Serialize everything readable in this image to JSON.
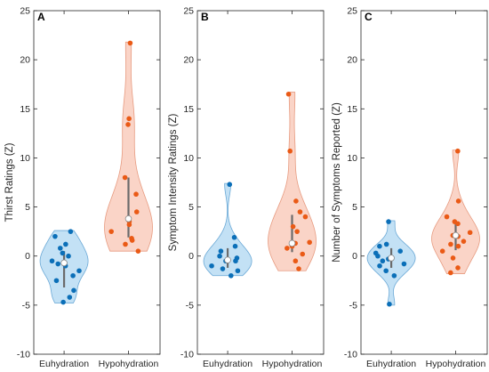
{
  "colors": {
    "euhydration_fill": "#b9dcf3",
    "euhydration_edge": "#6ba9d6",
    "euhydration_point": "#0b6fb8",
    "hypohydration_fill": "#f9cdbd",
    "hypohydration_edge": "#e79b80",
    "hypohydration_point": "#ea5a16",
    "box_line": "#6b6b6b",
    "median_fill": "#ffffff",
    "axis": "#262626"
  },
  "chart_data": [
    {
      "type": "violin",
      "panel_label": "A",
      "ylabel": "Thirst Ratings (Z)",
      "ylim": [
        -10,
        25
      ],
      "yticks": [
        -10,
        -5,
        0,
        5,
        10,
        15,
        20,
        25
      ],
      "categories": [
        "Euhydration",
        "Hypohydration"
      ],
      "series": [
        {
          "name": "Euhydration",
          "points": [
            2.5,
            2.0,
            1.2,
            0.8,
            0.3,
            0.0,
            -0.5,
            -0.8,
            -1.0,
            -1.5,
            -2.0,
            -2.5,
            -3.5,
            -4.2,
            -4.7
          ],
          "median": -0.7,
          "q1": -3.2,
          "q3": 0.5,
          "violin_range": [
            -4.8,
            2.6
          ],
          "peak": -0.5
        },
        {
          "name": "Hypohydration",
          "points": [
            21.7,
            14.0,
            13.4,
            8.0,
            6.3,
            4.5,
            3.8,
            3.5,
            3.2,
            2.5,
            1.8,
            1.6,
            1.2,
            0.5
          ],
          "median": 3.8,
          "q1": 1.9,
          "q3": 8.0,
          "violin_range": [
            0.5,
            21.8
          ],
          "peak": 2.5
        }
      ]
    },
    {
      "type": "violin",
      "panel_label": "B",
      "ylabel": "Symptom Intensity Ratings (Z)",
      "ylim": [
        -10,
        25
      ],
      "yticks": [
        -10,
        -5,
        0,
        5,
        10,
        15,
        20,
        25
      ],
      "categories": [
        "Euhydration",
        "Hypohydration"
      ],
      "series": [
        {
          "name": "Euhydration",
          "points": [
            7.3,
            1.9,
            1.0,
            0.5,
            0.0,
            -0.2,
            -0.5,
            -0.5,
            -1.0,
            -1.3,
            -1.5,
            -2.0
          ],
          "median": -0.4,
          "q1": -1.2,
          "q3": 0.8,
          "violin_range": [
            -2.0,
            7.4
          ],
          "peak": -0.5
        },
        {
          "name": "Hypohydration",
          "points": [
            16.5,
            10.7,
            5.6,
            4.5,
            4.0,
            3.0,
            2.5,
            1.4,
            1.3,
            1.0,
            0.8,
            0.2,
            -0.5,
            -1.3
          ],
          "median": 1.3,
          "q1": 0.4,
          "q3": 4.2,
          "violin_range": [
            -1.5,
            16.7
          ],
          "peak": 1.2
        }
      ]
    },
    {
      "type": "violin",
      "panel_label": "C",
      "ylabel": "Number of Symptoms Reported (Z)",
      "ylim": [
        -10,
        25
      ],
      "yticks": [
        -10,
        -5,
        0,
        5,
        10,
        15,
        20,
        25
      ],
      "categories": [
        "Euhydration",
        "Hypohydration"
      ],
      "series": [
        {
          "name": "Euhydration",
          "points": [
            3.5,
            1.2,
            1.0,
            0.5,
            0.3,
            0.0,
            -0.3,
            -0.5,
            -0.8,
            -1.0,
            -1.5,
            -2.0,
            -4.9
          ],
          "median": -0.2,
          "q1": -1.2,
          "q3": 0.8,
          "violin_range": [
            -5.0,
            3.6
          ],
          "peak": 0.0
        },
        {
          "name": "Hypohydration",
          "points": [
            10.7,
            5.6,
            4.0,
            3.5,
            3.3,
            2.4,
            2.1,
            2.0,
            1.5,
            1.2,
            1.0,
            0.5,
            -0.2,
            -1.2,
            -1.7
          ],
          "median": 2.1,
          "q1": 0.6,
          "q3": 3.4,
          "violin_range": [
            -1.8,
            10.8
          ],
          "peak": 2.0
        }
      ]
    }
  ]
}
